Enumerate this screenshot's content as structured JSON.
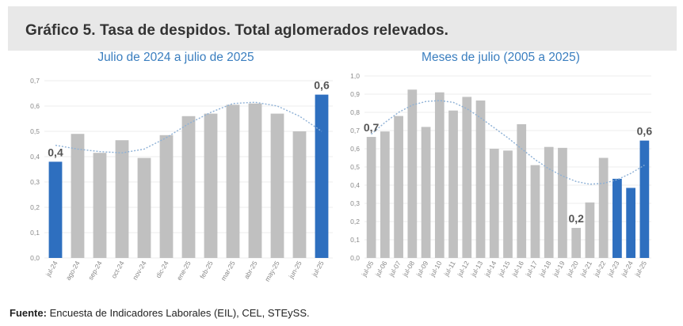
{
  "header": {
    "title": "Gráfico 5. Tasa de despidos. Total aglomerados relevados."
  },
  "source": {
    "label": "Fuente:",
    "text": " Encuesta de Indicadores Laborales (EIL), CEL, STEySS."
  },
  "colors": {
    "bar": "#c0c0c0",
    "highlight": "#2e6fbf",
    "trend": "#8eb1d6",
    "title": "#3a7ebf"
  },
  "chart_data": [
    {
      "type": "bar",
      "title": "Julio de 2024 a julio de 2025",
      "categories": [
        "jul-24",
        "ago-24",
        "sep-24",
        "oct-24",
        "nov-24",
        "dic-24",
        "ene-25",
        "feb-25",
        "mar-25",
        "abr-25",
        "may-25",
        "jun-25",
        "jul-25"
      ],
      "values": [
        0.38,
        0.49,
        0.415,
        0.465,
        0.395,
        0.485,
        0.56,
        0.57,
        0.605,
        0.61,
        0.57,
        0.5,
        0.645
      ],
      "highlight": [
        0,
        12
      ],
      "data_labels": [
        {
          "index": 0,
          "text": "0,4"
        },
        {
          "index": 12,
          "text": "0,6"
        }
      ],
      "trend": [
        0.445,
        0.43,
        0.42,
        0.415,
        0.43,
        0.475,
        0.53,
        0.575,
        0.61,
        0.615,
        0.6,
        0.56,
        0.5
      ],
      "ylim": [
        0,
        0.7
      ],
      "yticks": [
        "0,0",
        "0,1",
        "0,2",
        "0,3",
        "0,4",
        "0,5",
        "0,6",
        "0,7"
      ],
      "grid": true
    },
    {
      "type": "bar",
      "title": "Meses de julio (2005 a 2025)",
      "categories": [
        "jul-05",
        "jul-06",
        "jul-07",
        "jul-08",
        "jul-09",
        "jul-10",
        "jul-11",
        "jul-12",
        "jul-13",
        "jul-14",
        "jul-15",
        "jul-16",
        "jul-17",
        "jul-18",
        "jul-19",
        "jul-20",
        "jul-21",
        "jul-22",
        "jul-23",
        "jul-24",
        "jul-25"
      ],
      "values": [
        0.665,
        0.695,
        0.78,
        0.925,
        0.72,
        0.91,
        0.81,
        0.885,
        0.865,
        0.6,
        0.59,
        0.735,
        0.51,
        0.61,
        0.605,
        0.165,
        0.305,
        0.55,
        0.435,
        0.385,
        0.645
      ],
      "highlight": [
        18,
        19,
        20
      ],
      "data_labels": [
        {
          "index": 0,
          "text": "0,7"
        },
        {
          "index": 15,
          "text": "0,2"
        },
        {
          "index": 20,
          "text": "0,6"
        }
      ],
      "trend": [
        0.68,
        0.745,
        0.8,
        0.84,
        0.86,
        0.865,
        0.855,
        0.82,
        0.77,
        0.715,
        0.66,
        0.6,
        0.54,
        0.49,
        0.45,
        0.42,
        0.405,
        0.41,
        0.43,
        0.465,
        0.51
      ],
      "ylim": [
        0,
        1.0
      ],
      "yticks": [
        "0,0",
        "0,1",
        "0,2",
        "0,3",
        "0,4",
        "0,5",
        "0,6",
        "0,7",
        "0,8",
        "0,9",
        "1,0"
      ],
      "grid": true
    }
  ]
}
